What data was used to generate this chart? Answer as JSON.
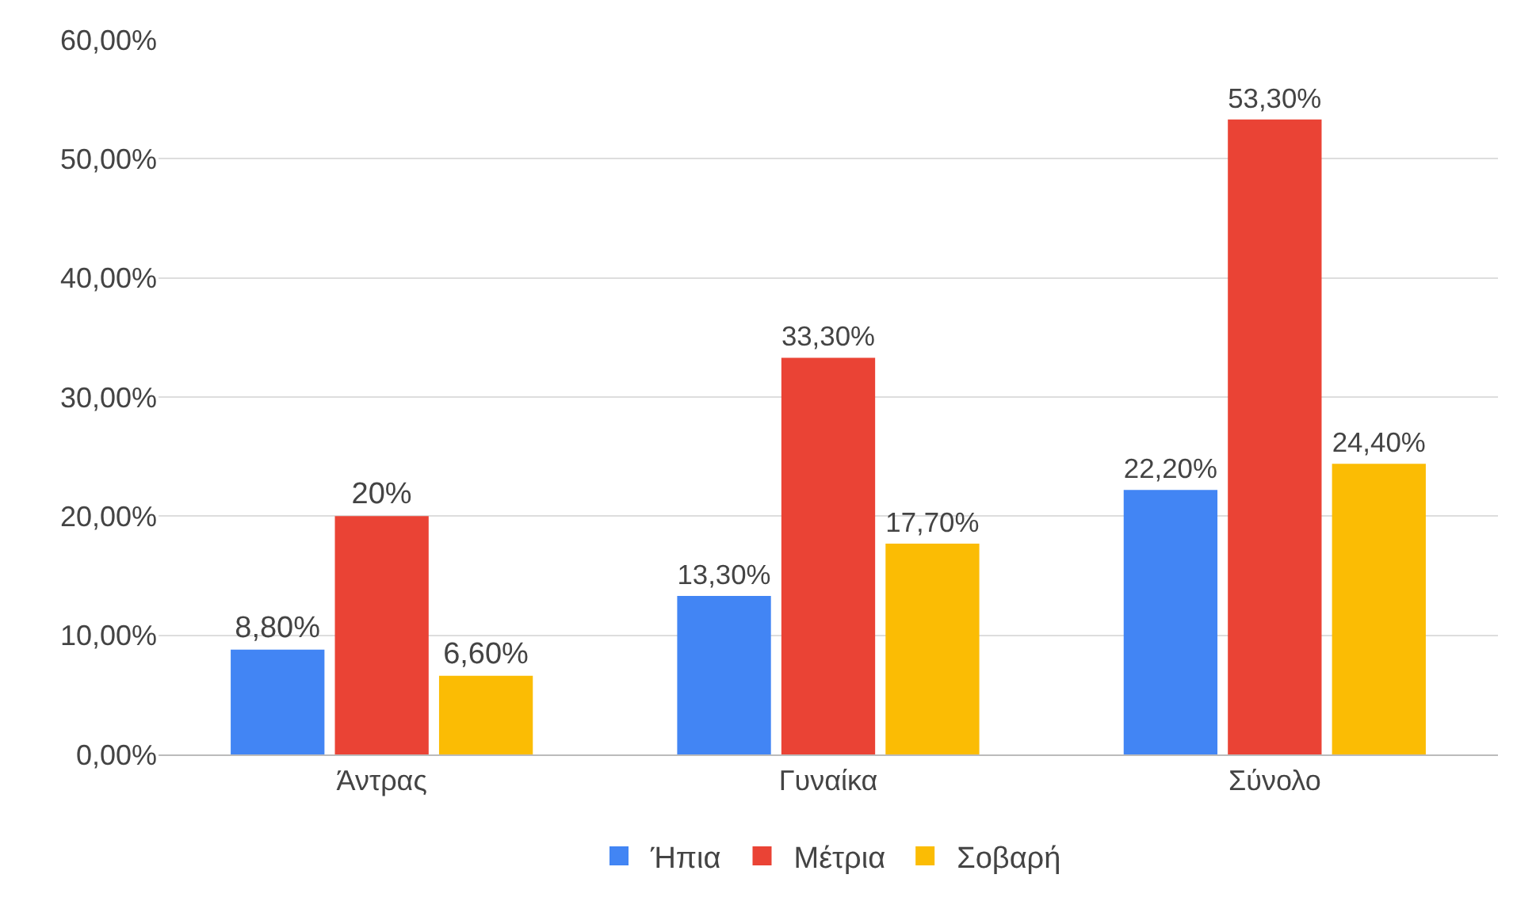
{
  "chart_data": {
    "type": "bar",
    "categories": [
      "Άντρας",
      "Γυναίκα",
      "Σύνολο"
    ],
    "series": [
      {
        "name": "Ήπια",
        "color": "#4285f4",
        "values": [
          8.8,
          13.3,
          22.2
        ],
        "value_labels": [
          "8,80%",
          "13,30%",
          "22,20%"
        ]
      },
      {
        "name": "Μέτρια",
        "color": "#ea4335",
        "values": [
          20,
          33.3,
          53.3
        ],
        "value_labels": [
          "20%",
          "33,30%",
          "53,30%"
        ]
      },
      {
        "name": "Σοβαρή",
        "color": "#fbbc04",
        "values": [
          6.6,
          17.7,
          24.4
        ],
        "value_labels": [
          "6,60%",
          "17,70%",
          "24,40%"
        ]
      }
    ],
    "ylim": [
      0,
      60
    ],
    "yticks": [
      {
        "value": 0,
        "label": "0,00%"
      },
      {
        "value": 10,
        "label": "10,00%"
      },
      {
        "value": 20,
        "label": "20,00%"
      },
      {
        "value": 30,
        "label": "30,00%"
      },
      {
        "value": 40,
        "label": "40,00%"
      },
      {
        "value": 50,
        "label": "50,00%"
      },
      {
        "value": 60,
        "label": "60,00%"
      }
    ],
    "grid": "y",
    "legend": "bottom"
  }
}
